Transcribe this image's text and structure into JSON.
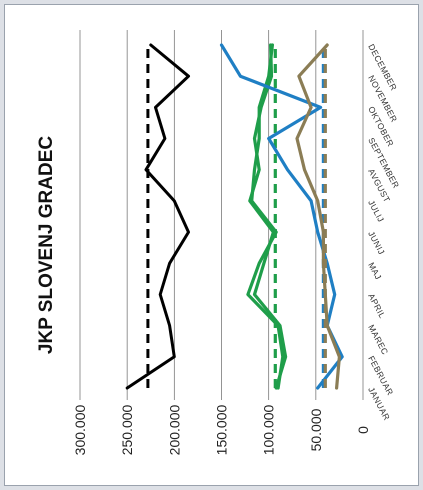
{
  "chart_data": {
    "type": "line",
    "title": "JKP SLOVENJ GRADEC",
    "categories": [
      "JANUAR",
      "FEBRUAR",
      "MAREC",
      "APRIL",
      "MAJ",
      "JUNIJ",
      "JULIJ",
      "AVGUST",
      "SEPTEMBER",
      "OKTOBER",
      "NOVEMBER",
      "DECEMBER"
    ],
    "yticks": [
      "0",
      "50.000",
      "100.000",
      "150.000",
      "200.000",
      "250.000",
      "300.000"
    ],
    "ylim": [
      0,
      300000
    ],
    "grid": true,
    "orientation": "rotated-90-cw",
    "series": [
      {
        "color": "#000000",
        "style": "solid",
        "values": [
          250000,
          200000,
          205000,
          215000,
          205000,
          185000,
          200000,
          230000,
          210000,
          220000,
          185000,
          225000
        ]
      },
      {
        "color": "#000000",
        "style": "dashed",
        "values": [
          228000,
          228000,
          228000,
          228000,
          228000,
          228000,
          228000,
          228000,
          228000,
          228000,
          228000,
          228000
        ]
      },
      {
        "color": "#1f9e4a",
        "style": "solid",
        "values": [
          92000,
          82000,
          88000,
          115000,
          105000,
          95000,
          120000,
          110000,
          115000,
          108000,
          97000,
          98000
        ]
      },
      {
        "color": "#1f9e4a",
        "style": "solid",
        "values": [
          90000,
          85000,
          90000,
          122000,
          110000,
          92000,
          118000,
          115000,
          110000,
          110000,
          100000,
          96000
        ]
      },
      {
        "color": "#1f9e4a",
        "style": "dashed",
        "values": [
          93000,
          93000,
          93000,
          93000,
          93000,
          93000,
          93000,
          93000,
          93000,
          93000,
          93000,
          93000
        ]
      },
      {
        "color": "#1f7fc4",
        "style": "solid",
        "values": [
          48000,
          22000,
          38000,
          30000,
          38000,
          48000,
          55000,
          80000,
          100000,
          45000,
          130000,
          150000
        ]
      },
      {
        "color": "#1f7fc4",
        "style": "dashed",
        "values": [
          42000,
          42000,
          42000,
          42000,
          42000,
          42000,
          42000,
          42000,
          42000,
          42000,
          42000,
          42000
        ]
      },
      {
        "color": "#8b7d55",
        "style": "solid",
        "values": [
          28000,
          25000,
          38000,
          40000,
          42000,
          42000,
          48000,
          62000,
          70000,
          55000,
          68000,
          38000
        ]
      },
      {
        "color": "#8b7d55",
        "style": "dashed",
        "values": [
          40000,
          40000,
          40000,
          40000,
          40000,
          40000,
          40000,
          40000,
          40000,
          40000,
          40000,
          40000
        ]
      }
    ]
  }
}
